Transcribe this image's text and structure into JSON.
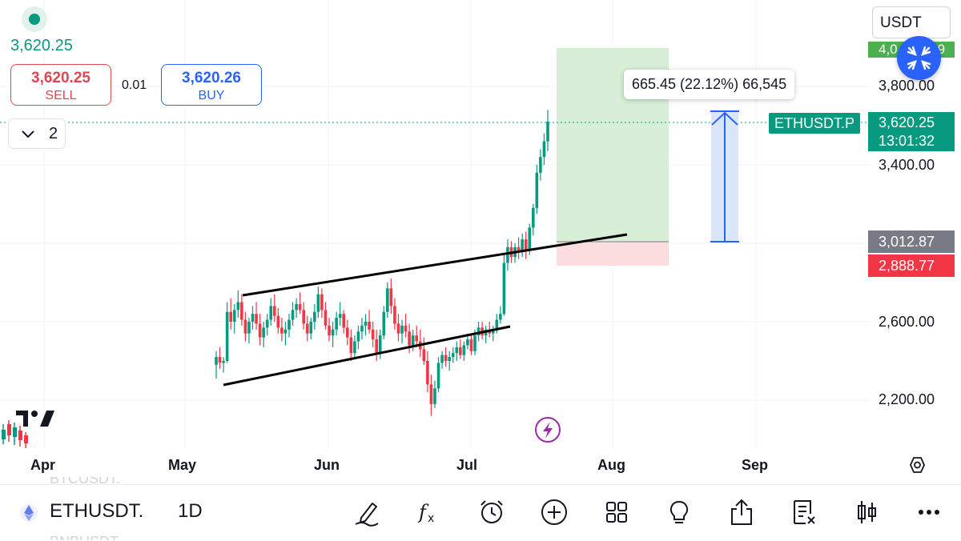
{
  "header": {
    "last_price": "3,620.25",
    "sell": {
      "price": "3,620.25",
      "label": "SELL"
    },
    "buy": {
      "price": "3,620.26",
      "label": "BUY"
    },
    "spread": "0.01",
    "indicator_count": "2",
    "currency": "USDT"
  },
  "chart_data": {
    "type": "candlestick",
    "symbol_tag": "ETHUSDT.P",
    "interval": "1D",
    "y_ticks": [
      "3,800.00",
      "3,400.00",
      "2,600.00",
      "2,200.00"
    ],
    "x_ticks": [
      "Apr",
      "May",
      "Jun",
      "Jul",
      "Aug",
      "Sep"
    ],
    "price_labels": {
      "current": "3,620.25",
      "countdown": "13:01:32",
      "target_partial": "4,0",
      "target_partial_tail": "9",
      "entry": "3,012.87",
      "stop": "2,888.77"
    },
    "measure_tooltip": "665.45 (22.12%) 66,545",
    "colors": {
      "up": "#089981",
      "down": "#f23645",
      "profit_zone": "#d6ecd4",
      "loss_zone": "#fbdcdf",
      "measure": "#2962ff"
    },
    "candles": [
      [
        2380,
        2450,
        2310,
        2420
      ],
      [
        2420,
        2470,
        2360,
        2390
      ],
      [
        2390,
        2420,
        2340,
        2400
      ],
      [
        2400,
        2700,
        2390,
        2650
      ],
      [
        2650,
        2720,
        2560,
        2600
      ],
      [
        2600,
        2690,
        2540,
        2660
      ],
      [
        2660,
        2760,
        2620,
        2700
      ],
      [
        2700,
        2740,
        2580,
        2610
      ],
      [
        2610,
        2650,
        2500,
        2540
      ],
      [
        2540,
        2620,
        2490,
        2600
      ],
      [
        2600,
        2680,
        2560,
        2640
      ],
      [
        2640,
        2700,
        2560,
        2590
      ],
      [
        2590,
        2640,
        2480,
        2520
      ],
      [
        2520,
        2600,
        2470,
        2570
      ],
      [
        2570,
        2640,
        2530,
        2610
      ],
      [
        2610,
        2720,
        2580,
        2680
      ],
      [
        2680,
        2740,
        2600,
        2630
      ],
      [
        2630,
        2670,
        2540,
        2570
      ],
      [
        2570,
        2620,
        2500,
        2540
      ],
      [
        2540,
        2600,
        2480,
        2560
      ],
      [
        2560,
        2640,
        2520,
        2610
      ],
      [
        2610,
        2700,
        2580,
        2660
      ],
      [
        2660,
        2720,
        2620,
        2690
      ],
      [
        2690,
        2750,
        2640,
        2660
      ],
      [
        2660,
        2700,
        2560,
        2590
      ],
      [
        2590,
        2630,
        2500,
        2540
      ],
      [
        2540,
        2620,
        2510,
        2600
      ],
      [
        2600,
        2690,
        2560,
        2650
      ],
      [
        2650,
        2780,
        2620,
        2740
      ],
      [
        2740,
        2770,
        2620,
        2660
      ],
      [
        2660,
        2700,
        2560,
        2580
      ],
      [
        2580,
        2620,
        2500,
        2530
      ],
      [
        2530,
        2600,
        2470,
        2560
      ],
      [
        2560,
        2650,
        2530,
        2620
      ],
      [
        2620,
        2700,
        2580,
        2640
      ],
      [
        2640,
        2660,
        2540,
        2570
      ],
      [
        2570,
        2610,
        2480,
        2520
      ],
      [
        2520,
        2560,
        2400,
        2440
      ],
      [
        2440,
        2530,
        2410,
        2500
      ],
      [
        2500,
        2580,
        2460,
        2550
      ],
      [
        2550,
        2620,
        2510,
        2580
      ],
      [
        2580,
        2640,
        2530,
        2600
      ],
      [
        2600,
        2660,
        2540,
        2560
      ],
      [
        2560,
        2600,
        2470,
        2510
      ],
      [
        2510,
        2560,
        2400,
        2440
      ],
      [
        2440,
        2560,
        2410,
        2530
      ],
      [
        2530,
        2680,
        2510,
        2650
      ],
      [
        2650,
        2800,
        2620,
        2770
      ],
      [
        2770,
        2820,
        2640,
        2680
      ],
      [
        2680,
        2720,
        2560,
        2590
      ],
      [
        2590,
        2640,
        2500,
        2540
      ],
      [
        2540,
        2610,
        2490,
        2580
      ],
      [
        2580,
        2640,
        2520,
        2550
      ],
      [
        2550,
        2590,
        2440,
        2480
      ],
      [
        2480,
        2560,
        2450,
        2530
      ],
      [
        2530,
        2580,
        2470,
        2500
      ],
      [
        2500,
        2560,
        2420,
        2460
      ],
      [
        2460,
        2520,
        2380,
        2400
      ],
      [
        2400,
        2450,
        2240,
        2280
      ],
      [
        2280,
        2330,
        2120,
        2180
      ],
      [
        2180,
        2300,
        2160,
        2260
      ],
      [
        2260,
        2420,
        2240,
        2390
      ],
      [
        2390,
        2450,
        2360,
        2430
      ],
      [
        2430,
        2470,
        2370,
        2400
      ],
      [
        2400,
        2450,
        2350,
        2420
      ],
      [
        2420,
        2470,
        2390,
        2440
      ],
      [
        2440,
        2500,
        2400,
        2470
      ],
      [
        2470,
        2510,
        2410,
        2430
      ],
      [
        2430,
        2500,
        2400,
        2480
      ],
      [
        2480,
        2540,
        2460,
        2510
      ],
      [
        2510,
        2540,
        2430,
        2450
      ],
      [
        2450,
        2560,
        2430,
        2530
      ],
      [
        2530,
        2600,
        2500,
        2570
      ],
      [
        2570,
        2600,
        2510,
        2530
      ],
      [
        2530,
        2580,
        2490,
        2560
      ],
      [
        2560,
        2600,
        2520,
        2540
      ],
      [
        2540,
        2580,
        2500,
        2560
      ],
      [
        2560,
        2640,
        2540,
        2610
      ],
      [
        2610,
        2680,
        2590,
        2640
      ],
      [
        2640,
        2940,
        2630,
        2900
      ],
      [
        2900,
        3020,
        2860,
        2980
      ],
      [
        2980,
        3010,
        2900,
        2930
      ],
      [
        2930,
        3000,
        2900,
        2980
      ],
      [
        2980,
        3030,
        2920,
        2960
      ],
      [
        2960,
        3050,
        2930,
        3020
      ],
      [
        3020,
        3060,
        2920,
        2960
      ],
      [
        2960,
        3100,
        2940,
        3080
      ],
      [
        3080,
        3200,
        3040,
        3180
      ],
      [
        3180,
        3400,
        3150,
        3360
      ],
      [
        3360,
        3480,
        3320,
        3440
      ],
      [
        3440,
        3560,
        3400,
        3520
      ],
      [
        3520,
        3680,
        3470,
        3620
      ]
    ]
  },
  "toolbar": {
    "symbol": "ETHUSDT.",
    "interval": "1D",
    "ghost_above": "BTCUSDT.",
    "ghost_below": "BNBUSDT."
  }
}
